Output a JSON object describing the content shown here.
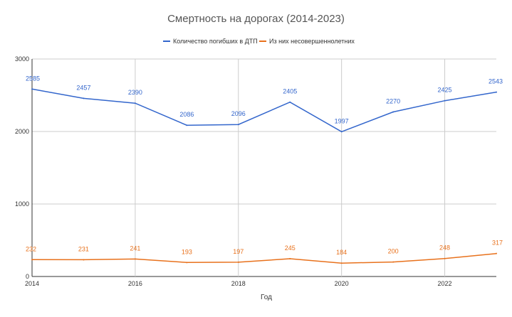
{
  "chart_data": {
    "type": "line",
    "title": "Смертность на дорогах (2014-2023)",
    "xlabel": "Год",
    "ylabel": "",
    "x": [
      2014,
      2015,
      2016,
      2017,
      2018,
      2019,
      2020,
      2021,
      2022,
      2023
    ],
    "x_ticks": [
      "2014",
      "2016",
      "2018",
      "2020",
      "2022"
    ],
    "y_ticks": [
      "0",
      "1000",
      "2000",
      "3000"
    ],
    "ylim": [
      0,
      3000
    ],
    "xlim": [
      2014,
      2023
    ],
    "grid": true,
    "legend_position": "top",
    "series": [
      {
        "name": "Количество погибших в ДТП",
        "color": "#3366cc",
        "values": [
          2585,
          2457,
          2390,
          2086,
          2096,
          2405,
          1997,
          2270,
          2425,
          2543
        ]
      },
      {
        "name": "Из них несовершеннолетних",
        "color": "#e8711c",
        "values": [
          232,
          231,
          241,
          193,
          197,
          245,
          184,
          200,
          248,
          317
        ]
      }
    ]
  }
}
